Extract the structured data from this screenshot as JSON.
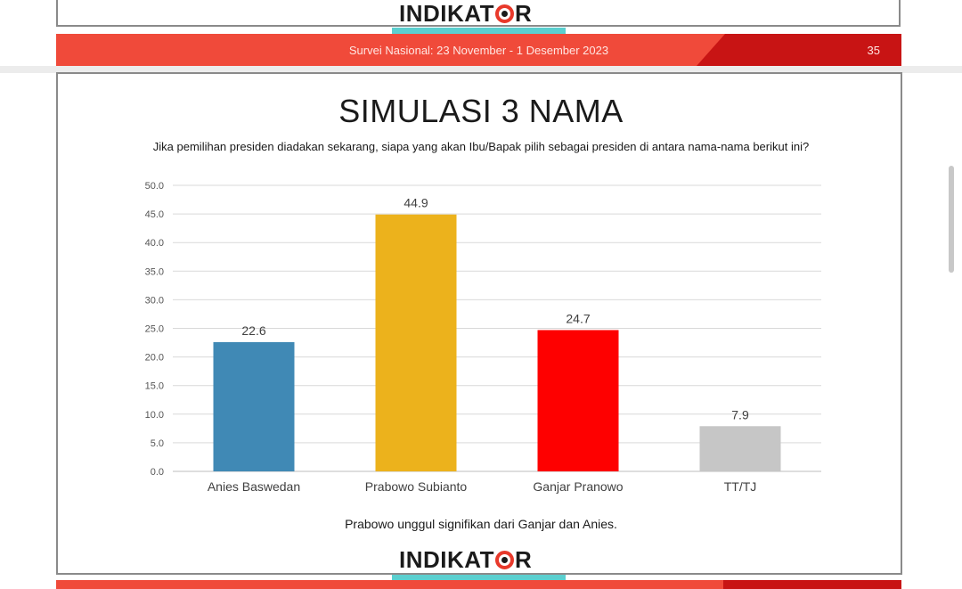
{
  "header": {
    "logo_text_left": "INDIKAT",
    "logo_text_right": "R",
    "survey": "Survei Nasional: 23 November - 1 Desember 2023",
    "page_number": "35"
  },
  "slide": {
    "title": "SIMULASI 3 NAMA",
    "question": "Jika pemilihan presiden diadakan sekarang, siapa yang akan Ibu/Bapak pilih sebagai presiden di antara nama-nama berikut ini?",
    "note": "Prabowo unggul signifikan dari Ganjar dan Anies."
  },
  "footer": {
    "logo_text_left": "INDIKAT",
    "logo_text_right": "R"
  },
  "colors": {
    "brand_red": "#f04a3a",
    "dark_red": "#c81414",
    "teal": "#5bcfcf"
  },
  "chart_data": {
    "type": "bar",
    "categories": [
      "Anies Baswedan",
      "Prabowo Subianto",
      "Ganjar Pranowo",
      "TT/TJ"
    ],
    "values": [
      22.6,
      44.9,
      24.7,
      7.9
    ],
    "value_labels": [
      "22.6",
      "44.9",
      "24.7",
      "7.9"
    ],
    "colors": [
      "#4089b5",
      "#ecb21c",
      "#fe0000",
      "#c6c6c6"
    ],
    "ylim": [
      0,
      50
    ],
    "yticks": [
      "0.0",
      "5.0",
      "10.0",
      "15.0",
      "20.0",
      "25.0",
      "30.0",
      "35.0",
      "40.0",
      "45.0",
      "50.0"
    ],
    "grid": true,
    "legend": "none"
  }
}
